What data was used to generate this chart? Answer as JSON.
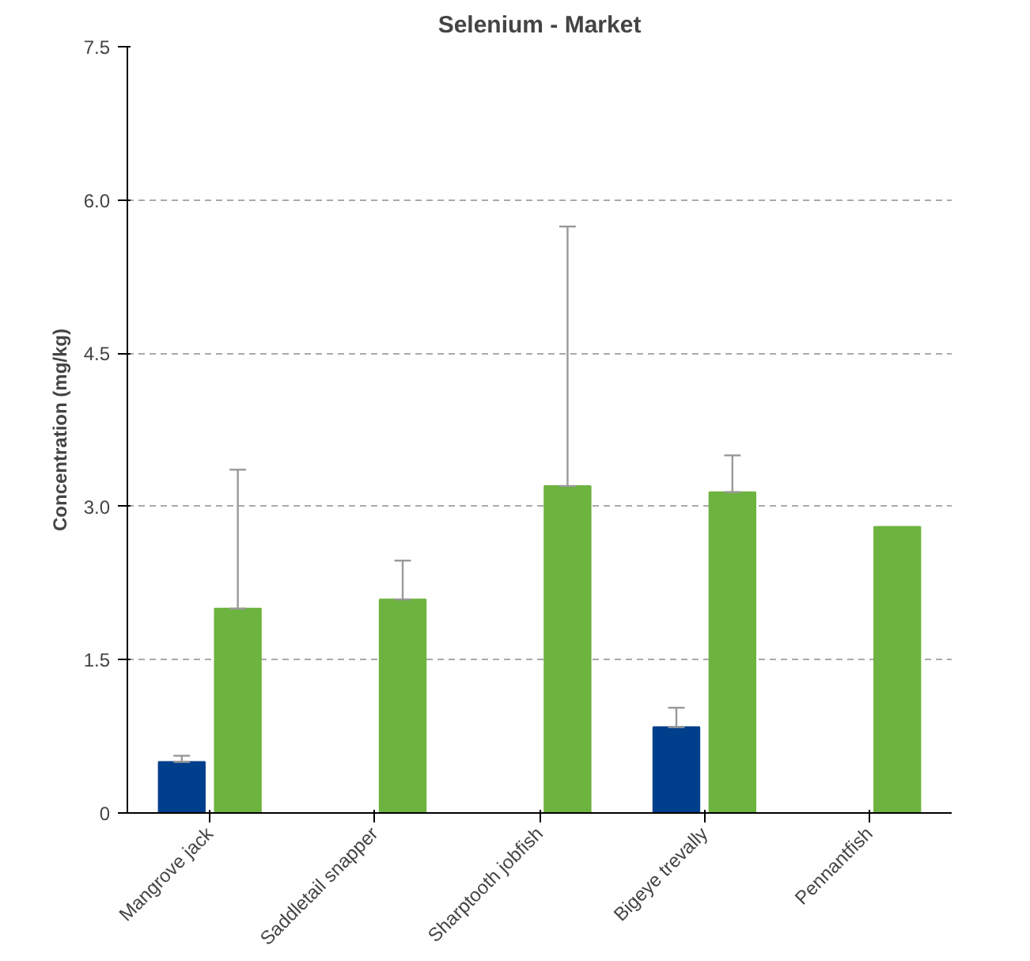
{
  "chart_data": {
    "type": "bar",
    "title": "Selenium - Market",
    "ylabel": "Concentration (mg/kg)",
    "categories": [
      "Mangrove jack",
      "Saddletail snapper",
      "Sharptooth jobfish",
      "Bigeye trevally",
      "Pennantfish"
    ],
    "series": [
      {
        "color": "#003f8c",
        "values": [
          0.5,
          null,
          null,
          0.84,
          null
        ],
        "errors": [
          [
            0.5,
            0.56
          ],
          null,
          null,
          [
            0.84,
            1.03
          ],
          null
        ]
      },
      {
        "color": "#6db33f",
        "values": [
          2.0,
          2.09,
          3.2,
          3.14,
          2.8
        ],
        "errors": [
          [
            2.0,
            3.36
          ],
          [
            2.09,
            2.47
          ],
          [
            3.2,
            5.74
          ],
          [
            3.14,
            3.5
          ],
          null
        ]
      }
    ],
    "ylim": [
      0,
      7.5
    ],
    "yticks": [
      0,
      1.5,
      {
        "value": 3,
        "label": "3.0"
      },
      4.5,
      {
        "value": 6,
        "label": "6.0"
      },
      7.5
    ],
    "grid": "y"
  }
}
